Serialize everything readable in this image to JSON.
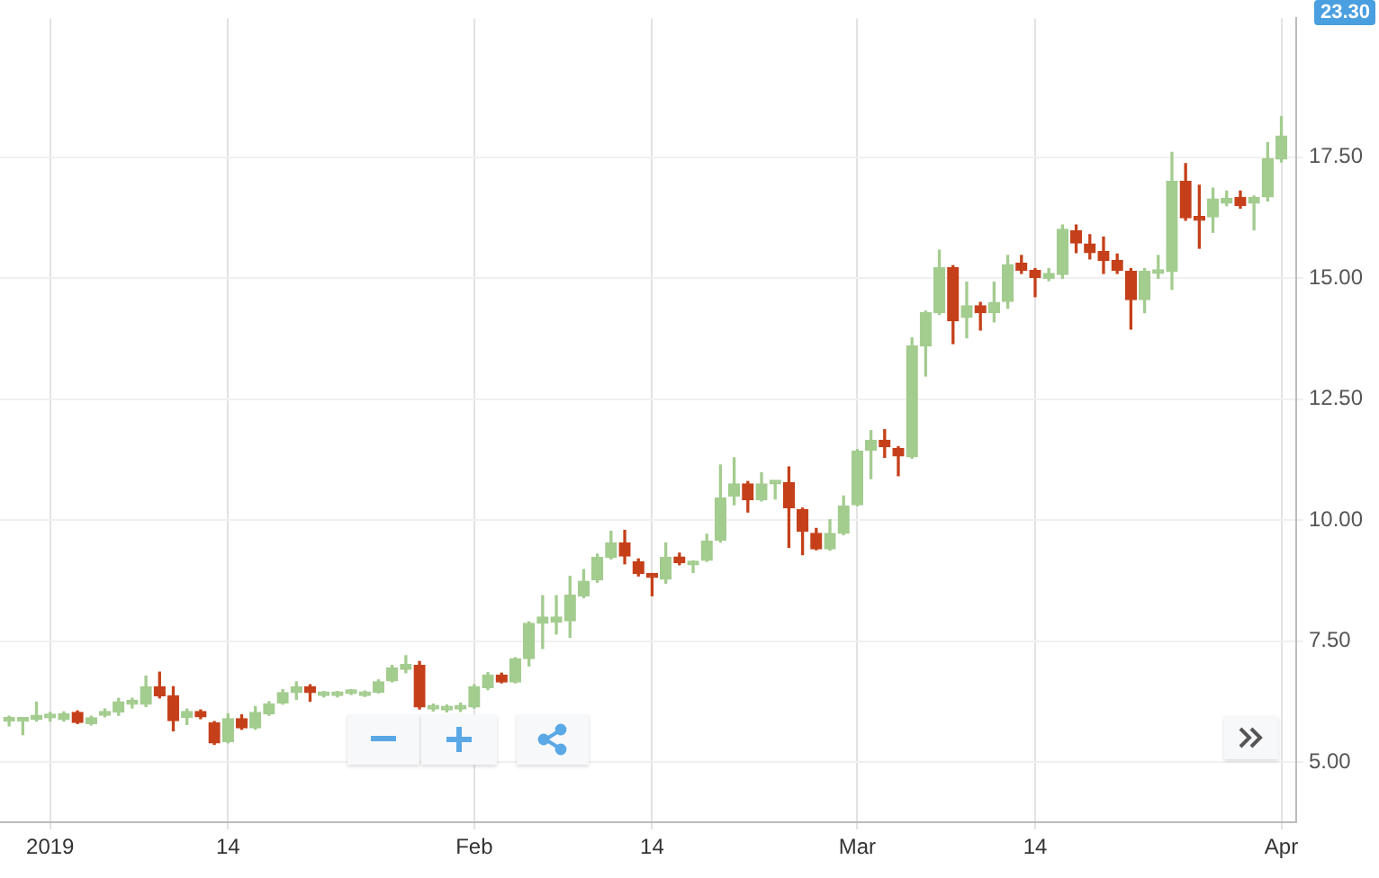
{
  "chart_data": {
    "type": "candlestick",
    "x": [
      "2018-12-29",
      "2018-12-30",
      "2018-12-31",
      "2019-01-01",
      "2019-01-02",
      "2019-01-03",
      "2019-01-04",
      "2019-01-05",
      "2019-01-06",
      "2019-01-07",
      "2019-01-08",
      "2019-01-09",
      "2019-01-10",
      "2019-01-11",
      "2019-01-12",
      "2019-01-13",
      "2019-01-14",
      "2019-01-15",
      "2019-01-16",
      "2019-01-17",
      "2019-01-18",
      "2019-01-19",
      "2019-01-20",
      "2019-01-21",
      "2019-01-22",
      "2019-01-23",
      "2019-01-24",
      "2019-01-25",
      "2019-01-26",
      "2019-01-27",
      "2019-01-28",
      "2019-01-29",
      "2019-01-30",
      "2019-01-31",
      "2019-02-01",
      "2019-02-02",
      "2019-02-03",
      "2019-02-04",
      "2019-02-05",
      "2019-02-06",
      "2019-02-07",
      "2019-02-08",
      "2019-02-09",
      "2019-02-10",
      "2019-02-11",
      "2019-02-12",
      "2019-02-13",
      "2019-02-14",
      "2019-02-15",
      "2019-02-16",
      "2019-02-17",
      "2019-02-18",
      "2019-02-19",
      "2019-02-20",
      "2019-02-21",
      "2019-02-22",
      "2019-02-23",
      "2019-02-24",
      "2019-02-25",
      "2019-02-26",
      "2019-02-27",
      "2019-02-28",
      "2019-03-01",
      "2019-03-02",
      "2019-03-03",
      "2019-03-04",
      "2019-03-05",
      "2019-03-06",
      "2019-03-07",
      "2019-03-08",
      "2019-03-09",
      "2019-03-10",
      "2019-03-11",
      "2019-03-12",
      "2019-03-13",
      "2019-03-14",
      "2019-03-15",
      "2019-03-16",
      "2019-03-17",
      "2019-03-18",
      "2019-03-19",
      "2019-03-20",
      "2019-03-21",
      "2019-03-22",
      "2019-03-23",
      "2019-03-24",
      "2019-03-25",
      "2019-03-26",
      "2019-03-27",
      "2019-03-28",
      "2019-03-29",
      "2019-03-30",
      "2019-03-31",
      "2019-04-01"
    ],
    "ohlc": [
      [
        5.85,
        5.95,
        5.75,
        5.87
      ],
      [
        5.86,
        5.9,
        5.57,
        5.85
      ],
      [
        5.88,
        6.24,
        5.85,
        5.97
      ],
      [
        5.92,
        6.03,
        5.85,
        5.96
      ],
      [
        5.88,
        6.04,
        5.85,
        6.0
      ],
      [
        6.03,
        6.06,
        5.8,
        5.82
      ],
      [
        5.8,
        5.95,
        5.77,
        5.92
      ],
      [
        5.97,
        6.1,
        5.94,
        6.05
      ],
      [
        6.04,
        6.32,
        5.97,
        6.25
      ],
      [
        6.2,
        6.32,
        6.12,
        6.24
      ],
      [
        6.2,
        6.78,
        6.15,
        6.56
      ],
      [
        6.56,
        6.86,
        6.33,
        6.37
      ],
      [
        6.37,
        6.56,
        5.65,
        5.86
      ],
      [
        5.93,
        6.1,
        5.78,
        6.05
      ],
      [
        6.05,
        6.08,
        5.9,
        5.94
      ],
      [
        5.81,
        5.84,
        5.37,
        5.4
      ],
      [
        5.42,
        6.0,
        5.4,
        5.9
      ],
      [
        5.9,
        5.98,
        5.68,
        5.71
      ],
      [
        5.71,
        6.15,
        5.68,
        6.03
      ],
      [
        6.0,
        6.25,
        5.97,
        6.2
      ],
      [
        6.22,
        6.5,
        6.2,
        6.44
      ],
      [
        6.44,
        6.66,
        6.3,
        6.56
      ],
      [
        6.56,
        6.6,
        6.26,
        6.44
      ],
      [
        6.38,
        6.46,
        6.35,
        6.44
      ],
      [
        6.38,
        6.46,
        6.35,
        6.44
      ],
      [
        6.42,
        6.5,
        6.4,
        6.47
      ],
      [
        6.38,
        6.47,
        6.36,
        6.45
      ],
      [
        6.45,
        6.7,
        6.43,
        6.66
      ],
      [
        6.68,
        7.0,
        6.66,
        6.95
      ],
      [
        6.92,
        7.2,
        6.85,
        7.02
      ],
      [
        7.0,
        7.08,
        6.1,
        6.14
      ],
      [
        6.1,
        6.2,
        6.06,
        6.16
      ],
      [
        6.08,
        6.18,
        6.04,
        6.13
      ],
      [
        6.1,
        6.22,
        6.05,
        6.16
      ],
      [
        6.14,
        6.6,
        6.12,
        6.56
      ],
      [
        6.54,
        6.85,
        6.5,
        6.8
      ],
      [
        6.8,
        6.84,
        6.64,
        6.66
      ],
      [
        6.66,
        7.16,
        6.64,
        7.14
      ],
      [
        7.14,
        7.9,
        6.99,
        7.87
      ],
      [
        7.87,
        8.44,
        7.35,
        8.0
      ],
      [
        7.9,
        8.44,
        7.65,
        8.0
      ],
      [
        7.92,
        8.84,
        7.58,
        8.45
      ],
      [
        8.44,
        8.98,
        8.4,
        8.74
      ],
      [
        8.77,
        9.3,
        8.72,
        9.23
      ],
      [
        9.23,
        9.77,
        9.2,
        9.53
      ],
      [
        9.53,
        9.79,
        9.1,
        9.26
      ],
      [
        9.14,
        9.2,
        8.85,
        8.9
      ],
      [
        8.86,
        8.9,
        8.44,
        8.82
      ],
      [
        8.78,
        9.53,
        8.7,
        9.23
      ],
      [
        9.24,
        9.32,
        9.08,
        9.12
      ],
      [
        9.08,
        9.16,
        8.92,
        9.12
      ],
      [
        9.17,
        9.71,
        9.15,
        9.57
      ],
      [
        9.59,
        11.14,
        9.55,
        10.46
      ],
      [
        10.5,
        11.29,
        10.32,
        10.75
      ],
      [
        10.75,
        10.8,
        10.17,
        10.42
      ],
      [
        10.42,
        10.98,
        10.4,
        10.75
      ],
      [
        10.75,
        10.8,
        10.44,
        10.77
      ],
      [
        10.78,
        11.1,
        9.44,
        10.26
      ],
      [
        10.22,
        10.25,
        9.29,
        9.77
      ],
      [
        9.73,
        9.83,
        9.39,
        9.41
      ],
      [
        9.41,
        10.01,
        9.38,
        9.73
      ],
      [
        9.73,
        10.5,
        9.7,
        10.29
      ],
      [
        10.32,
        11.46,
        10.3,
        11.43
      ],
      [
        11.45,
        11.85,
        10.86,
        11.65
      ],
      [
        11.65,
        11.87,
        11.3,
        11.52
      ],
      [
        11.48,
        11.52,
        10.92,
        11.33
      ],
      [
        11.31,
        13.77,
        11.28,
        13.6
      ],
      [
        13.6,
        14.32,
        12.98,
        14.29
      ],
      [
        14.29,
        15.58,
        14.25,
        15.22
      ],
      [
        15.22,
        15.26,
        13.65,
        14.12
      ],
      [
        14.19,
        14.92,
        13.77,
        14.43
      ],
      [
        14.43,
        14.5,
        13.93,
        14.29
      ],
      [
        14.29,
        14.92,
        14.1,
        14.5
      ],
      [
        14.52,
        15.47,
        14.38,
        15.28
      ],
      [
        15.31,
        15.47,
        15.1,
        15.16
      ],
      [
        15.16,
        15.2,
        14.62,
        15.02
      ],
      [
        15.0,
        15.2,
        14.95,
        15.1
      ],
      [
        15.08,
        16.1,
        15.0,
        16.01
      ],
      [
        15.98,
        16.1,
        15.53,
        15.73
      ],
      [
        15.71,
        15.9,
        15.4,
        15.53
      ],
      [
        15.55,
        15.85,
        15.1,
        15.37
      ],
      [
        15.37,
        15.5,
        15.1,
        15.16
      ],
      [
        15.14,
        15.2,
        13.95,
        14.56
      ],
      [
        14.56,
        15.2,
        14.29,
        15.14
      ],
      [
        15.1,
        15.47,
        15.0,
        15.16
      ],
      [
        15.14,
        17.6,
        14.77,
        17.0
      ],
      [
        17.0,
        17.37,
        16.2,
        16.25
      ],
      [
        16.27,
        16.92,
        15.62,
        16.2
      ],
      [
        16.27,
        16.86,
        15.95,
        16.64
      ],
      [
        16.55,
        16.8,
        16.5,
        16.65
      ],
      [
        16.67,
        16.8,
        16.45,
        16.5
      ],
      [
        16.55,
        16.7,
        16.0,
        16.67
      ],
      [
        16.68,
        17.8,
        16.6,
        17.47
      ],
      [
        17.46,
        18.34,
        17.4,
        17.94
      ]
    ],
    "colors": [
      "#a3cc8f",
      "#a3cc8f",
      "#a3cc8f",
      "#a3cc8f",
      "#a3cc8f",
      "#c5401a",
      "#a3cc8f",
      "#a3cc8f",
      "#a3cc8f",
      "#a3cc8f",
      "#a3cc8f",
      "#c5401a",
      "#c5401a",
      "#a3cc8f",
      "#c5401a",
      "#c5401a",
      "#a3cc8f",
      "#c5401a",
      "#a3cc8f",
      "#a3cc8f",
      "#a3cc8f",
      "#a3cc8f",
      "#c5401a",
      "#a3cc8f",
      "#a3cc8f",
      "#a3cc8f",
      "#a3cc8f",
      "#a3cc8f",
      "#a3cc8f",
      "#a3cc8f",
      "#c5401a",
      "#a3cc8f",
      "#a3cc8f",
      "#a3cc8f",
      "#a3cc8f",
      "#a3cc8f",
      "#c5401a",
      "#a3cc8f",
      "#a3cc8f",
      "#a3cc8f",
      "#a3cc8f",
      "#a3cc8f",
      "#a3cc8f",
      "#a3cc8f",
      "#a3cc8f",
      "#c5401a",
      "#c5401a",
      "#c5401a",
      "#a3cc8f",
      "#c5401a",
      "#a3cc8f",
      "#a3cc8f",
      "#a3cc8f",
      "#a3cc8f",
      "#c5401a",
      "#a3cc8f",
      "#a3cc8f",
      "#c5401a",
      "#c5401a",
      "#c5401a",
      "#a3cc8f",
      "#a3cc8f",
      "#a3cc8f",
      "#a3cc8f",
      "#c5401a",
      "#c5401a",
      "#a3cc8f",
      "#a3cc8f",
      "#a3cc8f",
      "#c5401a",
      "#a3cc8f",
      "#c5401a",
      "#a3cc8f",
      "#a3cc8f",
      "#c5401a",
      "#c5401a",
      "#a3cc8f",
      "#a3cc8f",
      "#c5401a",
      "#c5401a",
      "#c5401a",
      "#c5401a",
      "#c5401a",
      "#a3cc8f",
      "#a3cc8f",
      "#a3cc8f",
      "#c5401a",
      "#c5401a",
      "#a3cc8f",
      "#a3cc8f",
      "#c5401a",
      "#a3cc8f",
      "#a3cc8f",
      "#a3cc8f"
    ],
    "xlim": [
      "2018-12-28T08:00",
      "2019-04-02T02:00"
    ],
    "xticks": [
      {
        "value": "2019-01-01",
        "label": "2019"
      },
      {
        "value": "2019-01-14",
        "label": "14"
      },
      {
        "value": "2019-02-01",
        "label": "Feb"
      },
      {
        "value": "2019-02-14",
        "label": "14"
      },
      {
        "value": "2019-03-01",
        "label": "Mar"
      },
      {
        "value": "2019-03-14",
        "label": "14"
      },
      {
        "value": "2019-04-01",
        "label": "Apr"
      }
    ],
    "ylim": [
      3.76,
      20.37
    ],
    "yticks": [
      {
        "value": 5,
        "label": "5.00"
      },
      {
        "value": 7.5,
        "label": "7.50"
      },
      {
        "value": 10,
        "label": "10.00"
      },
      {
        "value": 12.5,
        "label": "12.50"
      },
      {
        "value": 15,
        "label": "15.00"
      },
      {
        "value": 17.5,
        "label": "17.50"
      }
    ],
    "grid": true,
    "annotations": [
      "23.30"
    ]
  }
}
